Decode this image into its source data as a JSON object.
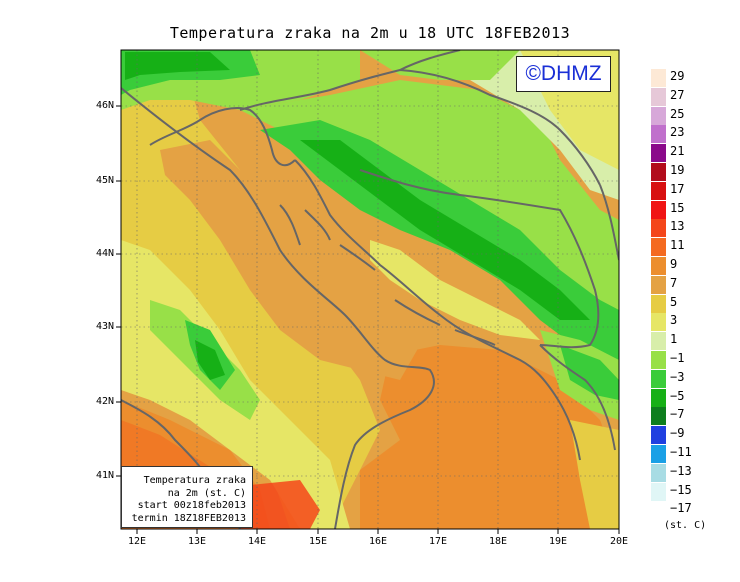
{
  "title": "Temperatura zraka na 2m u 18 UTC 18FEB2013",
  "logo": "©DHMZ",
  "info_box": {
    "line1": "Temperatura zraka",
    "line2": "na 2m (st. C)",
    "line3": "start 00z18feb2013",
    "line4": "termin 18Z18FEB2013"
  },
  "latitude_ticks": [
    "46N",
    "45N",
    "44N",
    "43N",
    "42N",
    "41N"
  ],
  "longitude_ticks": [
    "12E",
    "13E",
    "14E",
    "15E",
    "16E",
    "17E",
    "18E",
    "19E",
    "20E"
  ],
  "legend": {
    "unit": "(st. C)",
    "levels": [
      {
        "label": "29",
        "color": "#fde9d6"
      },
      {
        "label": "27",
        "color": "#e6c8d8"
      },
      {
        "label": "25",
        "color": "#d7a8d9"
      },
      {
        "label": "23",
        "color": "#c070cc"
      },
      {
        "label": "21",
        "color": "#8a0a8a"
      },
      {
        "label": "19",
        "color": "#b20c1c"
      },
      {
        "label": "17",
        "color": "#d81010"
      },
      {
        "label": "15",
        "color": "#f01414"
      },
      {
        "label": "13",
        "color": "#f4461a"
      },
      {
        "label": "11",
        "color": "#f46a20"
      },
      {
        "label": "9",
        "color": "#ec8e2e"
      },
      {
        "label": "7",
        "color": "#e4a244"
      },
      {
        "label": "5",
        "color": "#e6cc44"
      },
      {
        "label": "3",
        "color": "#e6e666"
      },
      {
        "label": "1",
        "color": "#d8eeaa"
      },
      {
        "label": "−1",
        "color": "#98e048"
      },
      {
        "label": "−3",
        "color": "#3acc3a"
      },
      {
        "label": "−5",
        "color": "#16b016"
      },
      {
        "label": "−7",
        "color": "#0e7e1e"
      },
      {
        "label": "−9",
        "color": "#2040e0"
      },
      {
        "label": "−11",
        "color": "#1aa0e6"
      },
      {
        "label": "−13",
        "color": "#a8dce4"
      },
      {
        "label": "−15",
        "color": "#e0f6f6"
      },
      {
        "label": "−17",
        "color": "#ffffff"
      }
    ]
  }
}
